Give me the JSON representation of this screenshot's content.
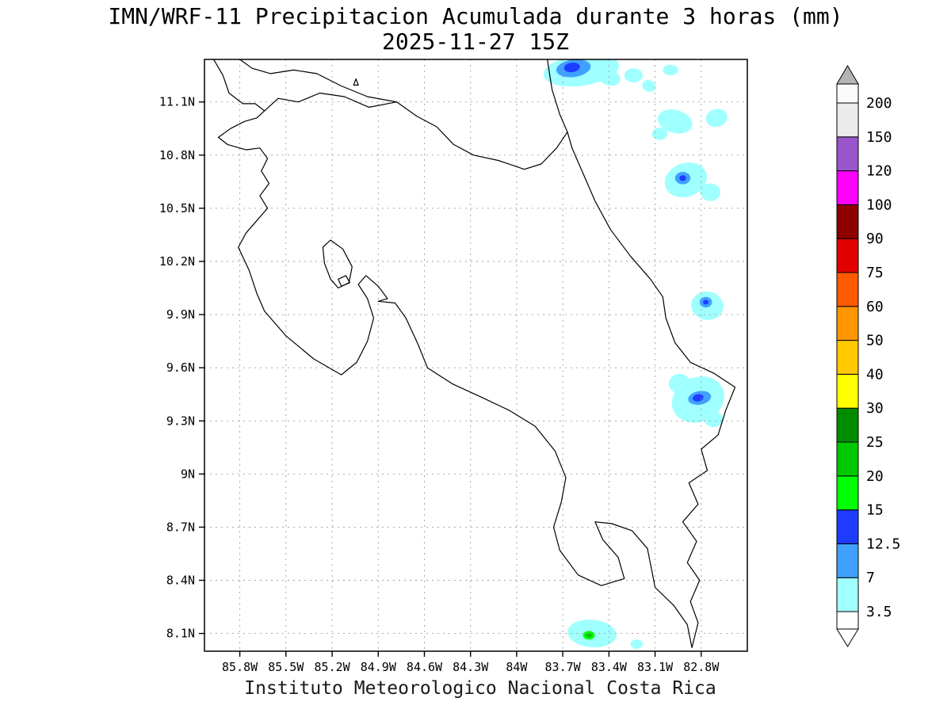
{
  "title": {
    "line1": "IMN/WRF-11 Precipitacion Acumulada durante 3 horas (mm)",
    "line2": "2025-11-27 15Z"
  },
  "caption": "Instituto Meteorologico Nacional Costa Rica",
  "chart_data": {
    "type": "heatmap",
    "subtype": "geographic-shaded-contour-map",
    "variable": "Precipitacion Acumulada durante 3 horas",
    "units": "mm",
    "model": "IMN/WRF-11",
    "valid_time": "2025-11-27 15Z",
    "region": "Costa Rica",
    "grid": "on",
    "legend_position": "right-colorbar",
    "lon_range_w": [
      86.03,
      82.5
    ],
    "lat_range_n": [
      8.0,
      11.34
    ],
    "x_axis": {
      "ticks": [
        {
          "label": "85.8W",
          "value": 85.8
        },
        {
          "label": "85.5W",
          "value": 85.5
        },
        {
          "label": "85.2W",
          "value": 85.2
        },
        {
          "label": "84.9W",
          "value": 84.9
        },
        {
          "label": "84.6W",
          "value": 84.6
        },
        {
          "label": "84.3W",
          "value": 84.3
        },
        {
          "label": "84W",
          "value": 84.0
        },
        {
          "label": "83.7W",
          "value": 83.7
        },
        {
          "label": "83.4W",
          "value": 83.4
        },
        {
          "label": "83.1W",
          "value": 83.1
        },
        {
          "label": "82.8W",
          "value": 82.8
        }
      ]
    },
    "y_axis": {
      "ticks": [
        {
          "label": "11.1N",
          "value": 11.1
        },
        {
          "label": "10.8N",
          "value": 10.8
        },
        {
          "label": "10.5N",
          "value": 10.5
        },
        {
          "label": "10.2N",
          "value": 10.2
        },
        {
          "label": "9.9N",
          "value": 9.9
        },
        {
          "label": "9.6N",
          "value": 9.6
        },
        {
          "label": "9.3N",
          "value": 9.3
        },
        {
          "label": "9N",
          "value": 9.0
        },
        {
          "label": "8.7N",
          "value": 8.7
        },
        {
          "label": "8.4N",
          "value": 8.4
        },
        {
          "label": "8.1N",
          "value": 8.1
        }
      ]
    },
    "colorbar": {
      "levels": [
        "3.5",
        "7",
        "12.5",
        "15",
        "20",
        "25",
        "30",
        "40",
        "50",
        "60",
        "75",
        "90",
        "100",
        "120",
        "150",
        "200"
      ],
      "segment_colors": [
        "#A0FFFF",
        "#3FA0FF",
        "#1E3CFF",
        "#00FF00",
        "#00C800",
        "#008C00",
        "#FFFF00",
        "#FFC800",
        "#FF9600",
        "#FF5A00",
        "#E10000",
        "#8C0000",
        "#FF00FF",
        "#9955CC",
        "#EBEBEB"
      ],
      "above_color": "#FAFAFA",
      "top_arrow_color": "#B4B4B4",
      "below_color": "#FFFFFF"
    },
    "precip_cells": [
      {
        "lon": 83.58,
        "lat": 11.28,
        "rx": 0.247,
        "ry": 0.089,
        "rot": -8,
        "ci": 0
      },
      {
        "lon": 83.4,
        "lat": 11.24,
        "rx": 0.077,
        "ry": 0.045,
        "rot": 20,
        "ci": 0
      },
      {
        "lon": 83.63,
        "lat": 11.29,
        "rx": 0.113,
        "ry": 0.049,
        "rot": -8,
        "ci": 1
      },
      {
        "lon": 83.64,
        "lat": 11.295,
        "rx": 0.052,
        "ry": 0.027,
        "rot": -8,
        "ci": 2
      },
      {
        "lon": 83.24,
        "lat": 11.25,
        "rx": 0.06,
        "ry": 0.04,
        "rot": 0,
        "ci": 0
      },
      {
        "lon": 83.14,
        "lat": 11.19,
        "rx": 0.045,
        "ry": 0.032,
        "rot": 25,
        "ci": 0
      },
      {
        "lon": 83.0,
        "lat": 11.28,
        "rx": 0.05,
        "ry": 0.03,
        "rot": 0,
        "ci": 0
      },
      {
        "lon": 82.7,
        "lat": 11.01,
        "rx": 0.07,
        "ry": 0.05,
        "rot": -15,
        "ci": 0
      },
      {
        "lon": 82.97,
        "lat": 10.99,
        "rx": 0.115,
        "ry": 0.065,
        "rot": 15,
        "ci": 0
      },
      {
        "lon": 83.07,
        "lat": 10.92,
        "rx": 0.05,
        "ry": 0.035,
        "rot": 0,
        "ci": 0
      },
      {
        "lon": 82.9,
        "lat": 10.66,
        "rx": 0.14,
        "ry": 0.095,
        "rot": -20,
        "ci": 0
      },
      {
        "lon": 82.74,
        "lat": 10.59,
        "rx": 0.065,
        "ry": 0.05,
        "rot": 0,
        "ci": 0
      },
      {
        "lon": 82.92,
        "lat": 10.67,
        "rx": 0.05,
        "ry": 0.035,
        "rot": 0,
        "ci": 1
      },
      {
        "lon": 82.92,
        "lat": 10.67,
        "rx": 0.022,
        "ry": 0.016,
        "rot": 0,
        "ci": 2
      },
      {
        "lon": 82.76,
        "lat": 9.95,
        "rx": 0.105,
        "ry": 0.08,
        "rot": 10,
        "ci": 0
      },
      {
        "lon": 82.77,
        "lat": 9.97,
        "rx": 0.04,
        "ry": 0.03,
        "rot": 0,
        "ci": 1
      },
      {
        "lon": 82.77,
        "lat": 9.97,
        "rx": 0.018,
        "ry": 0.013,
        "rot": 0,
        "ci": 2
      },
      {
        "lon": 82.82,
        "lat": 9.42,
        "rx": 0.175,
        "ry": 0.125,
        "rot": -25,
        "ci": 0
      },
      {
        "lon": 82.94,
        "lat": 9.51,
        "rx": 0.07,
        "ry": 0.055,
        "rot": 0,
        "ci": 0
      },
      {
        "lon": 82.72,
        "lat": 9.31,
        "rx": 0.06,
        "ry": 0.045,
        "rot": 0,
        "ci": 0
      },
      {
        "lon": 82.81,
        "lat": 9.43,
        "rx": 0.075,
        "ry": 0.038,
        "rot": -10,
        "ci": 1
      },
      {
        "lon": 82.82,
        "lat": 9.43,
        "rx": 0.035,
        "ry": 0.02,
        "rot": -10,
        "ci": 2
      },
      {
        "lon": 83.51,
        "lat": 8.1,
        "rx": 0.16,
        "ry": 0.078,
        "rot": 5,
        "ci": 0
      },
      {
        "lon": 83.53,
        "lat": 8.09,
        "rx": 0.038,
        "ry": 0.024,
        "rot": 0,
        "ci": 3
      },
      {
        "lon": 83.53,
        "lat": 8.09,
        "rx": 0.019,
        "ry": 0.012,
        "rot": 0,
        "ci": 4
      },
      {
        "lon": 83.22,
        "lat": 8.04,
        "rx": 0.04,
        "ry": 0.026,
        "rot": 0,
        "ci": 0
      }
    ],
    "coastlines": [
      [
        [
          85.97,
          11.34
        ],
        [
          85.91,
          11.25
        ],
        [
          85.87,
          11.15
        ],
        [
          85.78,
          11.09
        ],
        [
          85.7,
          11.09
        ],
        [
          85.64,
          11.05
        ],
        [
          85.69,
          11.01
        ],
        [
          85.77,
          10.99
        ],
        [
          85.86,
          10.95
        ],
        [
          85.94,
          10.9
        ],
        [
          85.88,
          10.86
        ],
        [
          85.76,
          10.83
        ],
        [
          85.67,
          10.84
        ],
        [
          85.62,
          10.78
        ],
        [
          85.66,
          10.71
        ],
        [
          85.61,
          10.64
        ],
        [
          85.67,
          10.57
        ],
        [
          85.62,
          10.5
        ],
        [
          85.68,
          10.44
        ],
        [
          85.76,
          10.36
        ],
        [
          85.81,
          10.28
        ],
        [
          85.74,
          10.15
        ],
        [
          85.69,
          10.02
        ],
        [
          85.64,
          9.92
        ],
        [
          85.5,
          9.78
        ],
        [
          85.32,
          9.65
        ],
        [
          85.14,
          9.56
        ],
        [
          85.04,
          9.63
        ],
        [
          84.97,
          9.75
        ],
        [
          84.93,
          9.88
        ],
        [
          84.97,
          9.99
        ],
        [
          85.03,
          10.07
        ],
        [
          84.98,
          10.12
        ],
        [
          84.9,
          10.06
        ],
        [
          84.84,
          9.99
        ],
        [
          84.9,
          9.975
        ],
        [
          84.79,
          9.965
        ],
        [
          84.72,
          9.88
        ],
        [
          84.64,
          9.73
        ],
        [
          84.58,
          9.6
        ],
        [
          84.42,
          9.51
        ],
        [
          84.22,
          9.43
        ],
        [
          84.05,
          9.36
        ],
        [
          83.88,
          9.27
        ],
        [
          83.75,
          9.13
        ],
        [
          83.68,
          8.98
        ],
        [
          83.71,
          8.84
        ],
        [
          83.76,
          8.7
        ],
        [
          83.72,
          8.57
        ],
        [
          83.6,
          8.43
        ],
        [
          83.45,
          8.37
        ],
        [
          83.3,
          8.41
        ],
        [
          83.34,
          8.53
        ],
        [
          83.44,
          8.63
        ],
        [
          83.49,
          8.73
        ],
        [
          83.38,
          8.72
        ],
        [
          83.25,
          8.68
        ],
        [
          83.15,
          8.58
        ],
        [
          83.12,
          8.45
        ],
        [
          83.1,
          8.36
        ],
        [
          82.98,
          8.26
        ],
        [
          82.89,
          8.15
        ],
        [
          82.86,
          8.02
        ],
        [
          82.82,
          8.16
        ],
        [
          82.87,
          8.28
        ],
        [
          82.81,
          8.4
        ],
        [
          82.89,
          8.5
        ],
        [
          82.83,
          8.62
        ],
        [
          82.92,
          8.73
        ],
        [
          82.82,
          8.83
        ],
        [
          82.88,
          8.95
        ],
        [
          82.76,
          9.02
        ],
        [
          82.8,
          9.14
        ],
        [
          82.69,
          9.22
        ],
        [
          82.64,
          9.36
        ],
        [
          82.58,
          9.49
        ],
        [
          82.72,
          9.57
        ],
        [
          82.87,
          9.63
        ],
        [
          82.97,
          9.74
        ],
        [
          83.03,
          9.88
        ],
        [
          83.05,
          10.0
        ],
        [
          83.13,
          10.1
        ],
        [
          83.26,
          10.23
        ],
        [
          83.39,
          10.38
        ],
        [
          83.49,
          10.54
        ],
        [
          83.57,
          10.7
        ],
        [
          83.64,
          10.84
        ],
        [
          83.67,
          10.93
        ],
        [
          83.72,
          11.03
        ],
        [
          83.77,
          11.17
        ],
        [
          83.79,
          11.28
        ],
        [
          83.8,
          11.34
        ]
      ],
      [
        [
          85.64,
          11.05
        ],
        [
          85.55,
          11.12
        ],
        [
          85.42,
          11.1
        ],
        [
          85.28,
          11.15
        ],
        [
          85.12,
          11.13
        ],
        [
          84.96,
          11.07
        ],
        [
          84.78,
          11.1
        ],
        [
          84.65,
          11.02
        ],
        [
          84.52,
          10.96
        ],
        [
          84.41,
          10.86
        ],
        [
          84.28,
          10.8
        ],
        [
          84.12,
          10.77
        ],
        [
          83.95,
          10.72
        ],
        [
          83.84,
          10.75
        ],
        [
          83.74,
          10.84
        ],
        [
          83.67,
          10.93
        ]
      ],
      [
        [
          85.8,
          11.34
        ],
        [
          85.72,
          11.29
        ],
        [
          85.6,
          11.26
        ],
        [
          85.45,
          11.28
        ],
        [
          85.3,
          11.26
        ],
        [
          85.14,
          11.19
        ],
        [
          84.97,
          11.13
        ],
        [
          84.78,
          11.1
        ]
      ]
    ],
    "islands": [
      [
        [
          85.26,
          10.28
        ],
        [
          85.21,
          10.32
        ],
        [
          85.13,
          10.27
        ],
        [
          85.07,
          10.17
        ],
        [
          85.09,
          10.08
        ],
        [
          85.16,
          10.05
        ],
        [
          85.21,
          10.1
        ],
        [
          85.25,
          10.19
        ]
      ],
      [
        [
          85.16,
          10.1
        ],
        [
          85.11,
          10.12
        ],
        [
          85.085,
          10.08
        ],
        [
          85.14,
          10.06
        ]
      ],
      [
        [
          85.06,
          11.195
        ],
        [
          85.03,
          11.195
        ],
        [
          85.045,
          11.23
        ]
      ]
    ]
  }
}
